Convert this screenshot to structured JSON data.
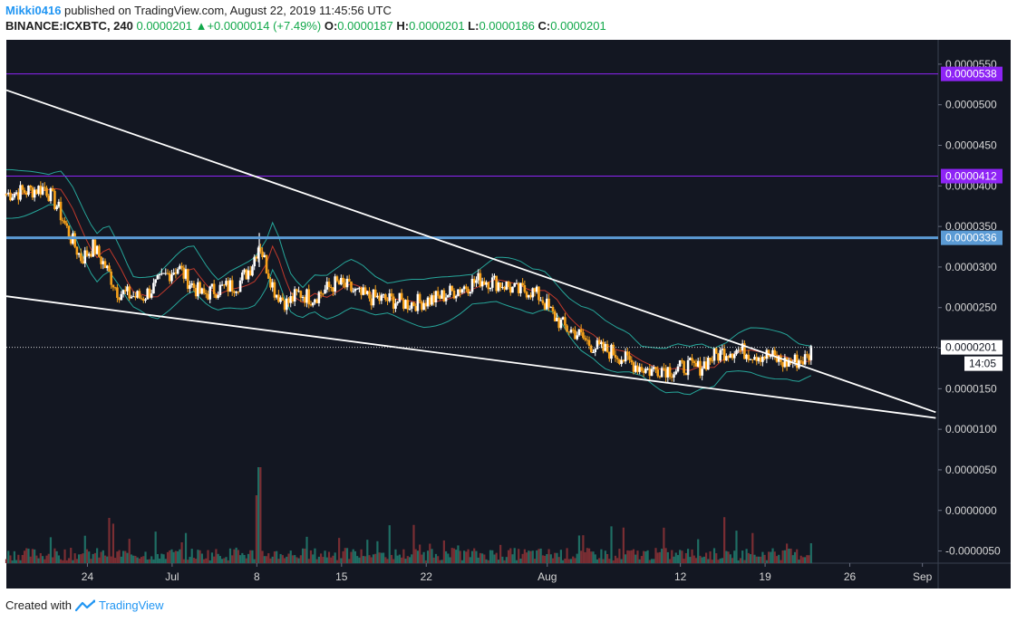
{
  "header": {
    "user": "Mikki0416",
    "published_text": " published on TradingView.com, August 22, 2019 11:45:56 UTC",
    "symbol": "BINANCE:ICXBTC, 240",
    "last": "0.0000201",
    "change_arrow": "▲",
    "change": "+0.0000014 (+7.49%)",
    "o_label": "O:",
    "o_value": "0.0000187",
    "h_label": "H:",
    "h_value": "0.0000201",
    "l_label": "L:",
    "l_value": "0.0000186",
    "c_label": "C:",
    "c_value": "0.0000201"
  },
  "footer": {
    "created_with": "Created with",
    "brand": "TradingView"
  },
  "colors": {
    "background": "#131722",
    "grid": "#1f2533",
    "candle_up": "#ffffff",
    "candle_down": "#f7a21b",
    "purple_line": "#8e24f5",
    "blue_line": "#5b9bd5",
    "bb_band": "#26a69a",
    "bb_basis": "#c0392b",
    "trendline": "#ffffff",
    "vol_up": "#1f6e64",
    "vol_down": "#7a2e33"
  },
  "chart_data": {
    "type": "line",
    "title": "",
    "xlabel": "",
    "ylabel": "",
    "ylim": [
      -6.5e-06,
      5.8e-05
    ],
    "grid": false,
    "y_ticks": [
      "0.0000550",
      "0.0000500",
      "0.0000450",
      "0.0000400",
      "0.0000350",
      "0.0000300",
      "0.0000250",
      "0.0000200",
      "0.0000150",
      "0.0000100",
      "0.0000050",
      "0.0000000",
      "-0.0000050"
    ],
    "y_tick_values": [
      5.5e-05,
      5e-05,
      4.5e-05,
      4e-05,
      3.5e-05,
      3e-05,
      2.5e-05,
      2e-05,
      1.5e-05,
      1e-05,
      5e-06,
      0.0,
      -5e-06
    ],
    "x_ticks": [
      {
        "label": "24",
        "day": 24
      },
      {
        "label": "Jul",
        "day": 31
      },
      {
        "label": "8",
        "day": 38
      },
      {
        "label": "15",
        "day": 45
      },
      {
        "label": "22",
        "day": 52
      },
      {
        "label": "Aug",
        "day": 62
      },
      {
        "label": "12",
        "day": 73
      },
      {
        "label": "19",
        "day": 80
      },
      {
        "label": "26",
        "day": 87
      },
      {
        "label": "Sep",
        "day": 93
      }
    ],
    "x_range_days": [
      17.3,
      94.3
    ],
    "price_path": [
      [
        17.3,
        3.9e-05
      ],
      [
        19.5,
        3.95e-05
      ],
      [
        20.5,
        3.98e-05
      ],
      [
        21.5,
        3.75e-05
      ],
      [
        22.5,
        3.4e-05
      ],
      [
        23.5,
        3.1e-05
      ],
      [
        24.5,
        3.25e-05
      ],
      [
        25.5,
        3e-05
      ],
      [
        26.5,
        2.7e-05
      ],
      [
        27.5,
        2.65e-05
      ],
      [
        28.5,
        2.62e-05
      ],
      [
        29.5,
        2.75e-05
      ],
      [
        30.5,
        2.9e-05
      ],
      [
        31.5,
        3e-05
      ],
      [
        32.5,
        2.8e-05
      ],
      [
        33.5,
        2.65e-05
      ],
      [
        34.5,
        2.72e-05
      ],
      [
        35.5,
        2.75e-05
      ],
      [
        36.5,
        2.8e-05
      ],
      [
        37.5,
        3e-05
      ],
      [
        38.2,
        3.3e-05
      ],
      [
        38.8,
        3e-05
      ],
      [
        39.5,
        2.7e-05
      ],
      [
        40.5,
        2.55e-05
      ],
      [
        41.5,
        2.68e-05
      ],
      [
        42.5,
        2.62e-05
      ],
      [
        43.5,
        2.7e-05
      ],
      [
        44.5,
        2.8e-05
      ],
      [
        45.5,
        2.75e-05
      ],
      [
        46.5,
        2.65e-05
      ],
      [
        47.5,
        2.62e-05
      ],
      [
        48.5,
        2.6e-05
      ],
      [
        49.5,
        2.58e-05
      ],
      [
        50.5,
        2.55e-05
      ],
      [
        51.5,
        2.57e-05
      ],
      [
        52.5,
        2.6e-05
      ],
      [
        53.5,
        2.65e-05
      ],
      [
        54.5,
        2.72e-05
      ],
      [
        55.5,
        2.78e-05
      ],
      [
        56.5,
        2.85e-05
      ],
      [
        57.5,
        2.82e-05
      ],
      [
        58.5,
        2.78e-05
      ],
      [
        59.5,
        2.7e-05
      ],
      [
        60.5,
        2.72e-05
      ],
      [
        61.5,
        2.62e-05
      ],
      [
        62.5,
        2.4e-05
      ],
      [
        63.5,
        2.25e-05
      ],
      [
        64.5,
        2.18e-05
      ],
      [
        65.5,
        2.05e-05
      ],
      [
        66.5,
        1.98e-05
      ],
      [
        67.5,
        1.95e-05
      ],
      [
        68.5,
        1.85e-05
      ],
      [
        69.5,
        1.78e-05
      ],
      [
        70.5,
        1.72e-05
      ],
      [
        71.5,
        1.76e-05
      ],
      [
        72.5,
        1.72e-05
      ],
      [
        73.5,
        1.78e-05
      ],
      [
        74.5,
        1.75e-05
      ],
      [
        75.5,
        1.88e-05
      ],
      [
        76.5,
        1.95e-05
      ],
      [
        77.5,
        1.98e-05
      ],
      [
        78.5,
        1.95e-05
      ],
      [
        79.5,
        1.92e-05
      ],
      [
        80.5,
        1.9e-05
      ],
      [
        81.5,
        1.82e-05
      ],
      [
        82.5,
        1.84e-05
      ],
      [
        83.5,
        1.87e-05
      ],
      [
        83.9,
        2.01e-05
      ]
    ],
    "horizontal_levels": [
      {
        "label": "0.0000538",
        "value": 5.38e-05,
        "color": "#8e24f5"
      },
      {
        "label": "0.0000412",
        "value": 4.12e-05,
        "color": "#8e24f5"
      },
      {
        "label": "0.0000336",
        "value": 3.36e-05,
        "color": "#5b9bd5"
      }
    ],
    "trendlines": [
      {
        "from": [
          17.3,
          5.18e-05
        ],
        "to": [
          94.1,
          1.21e-05
        ]
      },
      {
        "from": [
          17.3,
          2.64e-05
        ],
        "to": [
          94.1,
          1.14e-05
        ]
      }
    ],
    "last_price": {
      "label": "0.0000201",
      "value": 2.01e-05,
      "countdown": "14:05"
    }
  }
}
